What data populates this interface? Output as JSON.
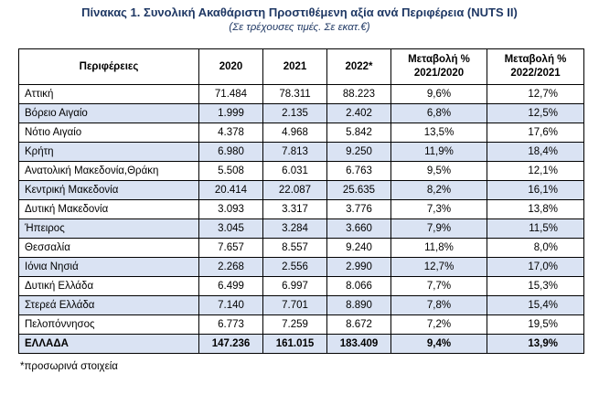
{
  "title": "Πίνακας 1. Συνολική Ακαθάριστη Προστιθέμενη αξία ανά  Περιφέρεια (NUTS II)",
  "subtitle": "(Σε τρέχουσες τιμές. Σε εκατ.€)",
  "headers": {
    "region": "Περιφέρειες",
    "y2020": "2020",
    "y2021": "2021",
    "y2022": "2022*",
    "chg1_line1": "Μεταβολή %",
    "chg1_line2": "2021/2020",
    "chg2_line1": "Μεταβολή %",
    "chg2_line2": "2022/2021"
  },
  "rows": [
    {
      "region": "Αττική",
      "y2020": "71.484",
      "y2021": "78.311",
      "y2022": "88.223",
      "chg1": "9,6%",
      "chg2": "12,7%"
    },
    {
      "region": "Βόρειο Αιγαίο",
      "y2020": "1.999",
      "y2021": "2.135",
      "y2022": "2.402",
      "chg1": "6,8%",
      "chg2": "12,5%"
    },
    {
      "region": "Νότιο Αιγαίο",
      "y2020": "4.378",
      "y2021": "4.968",
      "y2022": "5.842",
      "chg1": "13,5%",
      "chg2": "17,6%"
    },
    {
      "region": "Κρήτη",
      "y2020": "6.980",
      "y2021": "7.813",
      "y2022": "9.250",
      "chg1": "11,9%",
      "chg2": "18,4%"
    },
    {
      "region": "Ανατολική Μακεδονία,Θράκη",
      "y2020": "5.508",
      "y2021": "6.031",
      "y2022": "6.763",
      "chg1": "9,5%",
      "chg2": "12,1%"
    },
    {
      "region": "Κεντρική Μακεδονία",
      "y2020": "20.414",
      "y2021": "22.087",
      "y2022": "25.635",
      "chg1": "8,2%",
      "chg2": "16,1%"
    },
    {
      "region": "Δυτική Μακεδονία",
      "y2020": "3.093",
      "y2021": "3.317",
      "y2022": "3.776",
      "chg1": "7,3%",
      "chg2": "13,8%"
    },
    {
      "region": "Ήπειρος",
      "y2020": "3.045",
      "y2021": "3.284",
      "y2022": "3.660",
      "chg1": "7,9%",
      "chg2": "11,5%"
    },
    {
      "region": "Θεσσαλία",
      "y2020": "7.657",
      "y2021": "8.557",
      "y2022": "9.240",
      "chg1": "11,8%",
      "chg2": "8,0%"
    },
    {
      "region": "Ιόνια Νησιά",
      "y2020": "2.268",
      "y2021": "2.556",
      "y2022": "2.990",
      "chg1": "12,7%",
      "chg2": "17,0%"
    },
    {
      "region": "Δυτική Ελλάδα",
      "y2020": "6.499",
      "y2021": "6.997",
      "y2022": "8.066",
      "chg1": "7,7%",
      "chg2": "15,3%"
    },
    {
      "region": "Στερεά Ελλάδα",
      "y2020": "7.140",
      "y2021": "7.701",
      "y2022": "8.890",
      "chg1": "7,8%",
      "chg2": "15,4%"
    },
    {
      "region": "Πελοπόννησος",
      "y2020": "6.773",
      "y2021": "7.259",
      "y2022": "8.672",
      "chg1": "7,2%",
      "chg2": "19,5%"
    }
  ],
  "total": {
    "region": "ΕΛΛΑΔΑ",
    "y2020": "147.236",
    "y2021": "161.015",
    "y2022": "183.409",
    "chg1": "9,4%",
    "chg2": "13,9%"
  },
  "footnote": "*προσωρινά στοιχεία",
  "colors": {
    "title": "#1f3864",
    "row_shade": "#dae3f3"
  }
}
